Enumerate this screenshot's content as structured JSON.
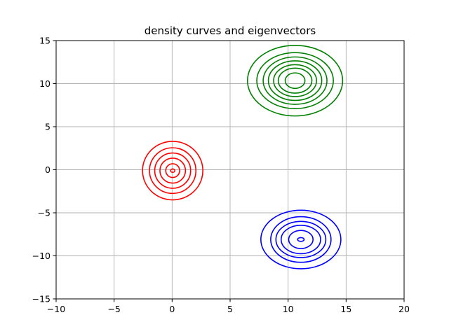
{
  "chart_data": {
    "type": "contour",
    "title": "density curves and eigenvectors",
    "xlabel": "",
    "ylabel": "",
    "xlim": [
      -10,
      20
    ],
    "ylim": [
      -15,
      15
    ],
    "xticks": [
      -10,
      -5,
      0,
      5,
      10,
      15,
      20
    ],
    "yticks": [
      -15,
      -10,
      -5,
      0,
      5,
      10,
      15
    ],
    "xtick_labels": [
      "−10",
      "−5",
      "0",
      "5",
      "10",
      "15",
      "20"
    ],
    "ytick_labels": [
      "−15",
      "−10",
      "−5",
      "0",
      "5",
      "10",
      "15"
    ],
    "grid": true,
    "series": [
      {
        "color": "#ff0000",
        "center": [
          0.05,
          -0.1
        ],
        "contours": [
          {
            "rx": 2.6,
            "ry": 3.4
          },
          {
            "rx": 2.0,
            "ry": 2.65
          },
          {
            "rx": 1.55,
            "ry": 2.05
          },
          {
            "rx": 1.1,
            "ry": 1.45
          },
          {
            "rx": 0.6,
            "ry": 0.8
          },
          {
            "rx": 0.18,
            "ry": 0.2
          }
        ]
      },
      {
        "color": "#008000",
        "center": [
          10.6,
          10.35
        ],
        "contours": [
          {
            "rx": 4.1,
            "ry": 4.1
          },
          {
            "rx": 3.3,
            "ry": 3.25
          },
          {
            "rx": 2.75,
            "ry": 2.75
          },
          {
            "rx": 2.3,
            "ry": 2.3
          },
          {
            "rx": 1.85,
            "ry": 1.85
          },
          {
            "rx": 1.45,
            "ry": 1.45
          },
          {
            "rx": 0.85,
            "ry": 0.9
          }
        ]
      },
      {
        "color": "#0000ff",
        "center": [
          11.1,
          -8.1
        ],
        "contours": [
          {
            "rx": 3.45,
            "ry": 3.4
          },
          {
            "rx": 2.6,
            "ry": 2.65
          },
          {
            "rx": 2.15,
            "ry": 2.1
          },
          {
            "rx": 1.7,
            "ry": 1.65
          },
          {
            "rx": 1.05,
            "ry": 1.05
          },
          {
            "rx": 0.28,
            "ry": 0.22
          }
        ]
      }
    ]
  }
}
